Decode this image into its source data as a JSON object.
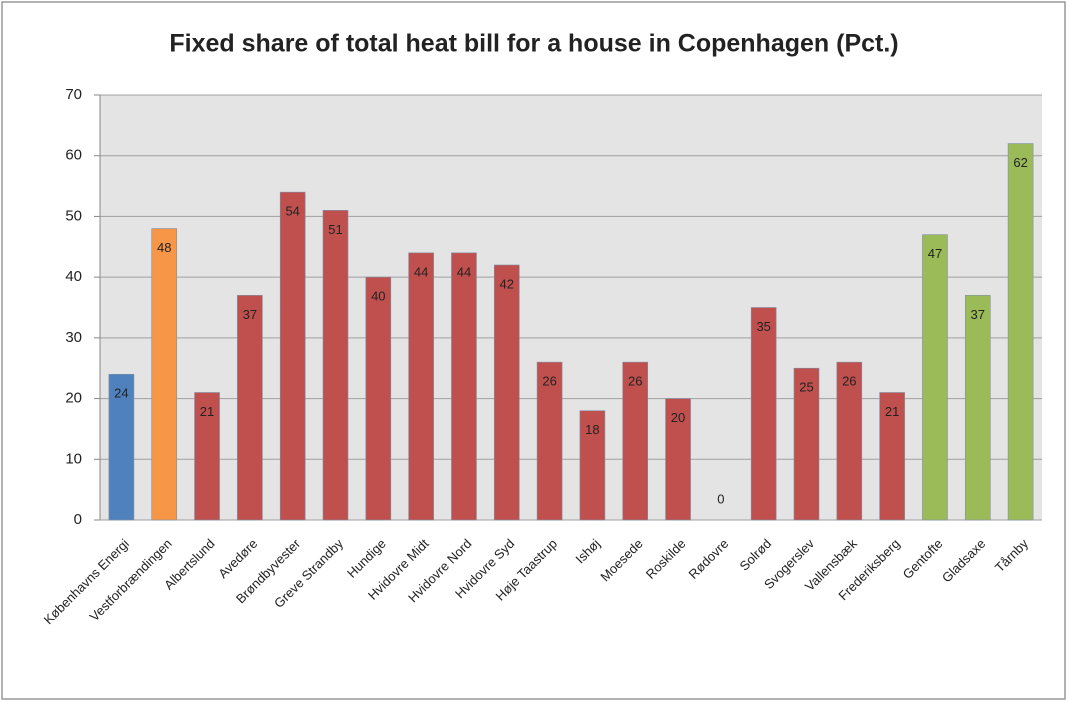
{
  "chart_data": {
    "type": "bar",
    "title": "Fixed share of total heat bill for a house in Copenhagen (Pct.)",
    "categories": [
      "Københavns Energi",
      "Vestforbrændingen",
      "Albertslund",
      "Avedøre",
      "Brøndbyvester",
      "Greve Strandby",
      "Hundige",
      "Hvidovre Midt",
      "Hvidovre Nord",
      "Hvidovre Syd",
      "Høje Taastrup",
      "Ishøj",
      "Moesede",
      "Roskilde",
      "Rødovre",
      "Solrød",
      "Svogerslev",
      "Vallensbæk",
      "Frederiksberg",
      "Gentofte",
      "Gladsaxe",
      "Tårnby"
    ],
    "values": [
      24,
      48,
      21,
      37,
      54,
      51,
      40,
      44,
      44,
      42,
      26,
      18,
      26,
      20,
      0,
      35,
      25,
      26,
      21,
      47,
      37,
      62
    ],
    "colors": [
      "#4f81bd",
      "#f79646",
      "#c0504d",
      "#c0504d",
      "#c0504d",
      "#c0504d",
      "#c0504d",
      "#c0504d",
      "#c0504d",
      "#c0504d",
      "#c0504d",
      "#c0504d",
      "#c0504d",
      "#c0504d",
      "#c0504d",
      "#c0504d",
      "#c0504d",
      "#c0504d",
      "#c0504d",
      "#9bbb59",
      "#9bbb59",
      "#9bbb59"
    ],
    "ylim": [
      0,
      70
    ],
    "yticks": [
      0,
      10,
      20,
      30,
      40,
      50,
      60,
      70
    ],
    "grid": true
  }
}
